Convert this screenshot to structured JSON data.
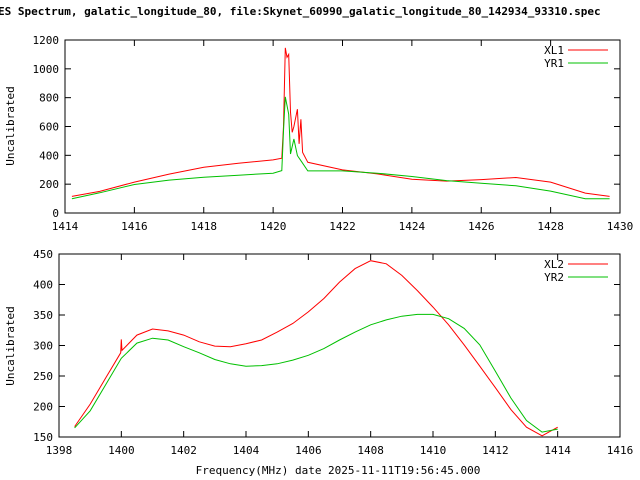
{
  "chart_data": [
    {
      "type": "line",
      "title": "ES Spectrum, galatic_longitude_80, file:Skynet_60990_galatic_longitude_80_142934_93310.spec",
      "xlabel": "",
      "ylabel": "Uncalibrated",
      "xlim": [
        1414,
        1430
      ],
      "ylim": [
        0,
        1200
      ],
      "xticks": [
        1414,
        1416,
        1418,
        1420,
        1422,
        1424,
        1426,
        1428,
        1430
      ],
      "yticks": [
        0,
        200,
        400,
        600,
        800,
        1000,
        1200
      ],
      "grid": false,
      "legend_position": "top-right",
      "series": [
        {
          "name": "XL1",
          "color": "#ff0000",
          "x": [
            1414.2,
            1415,
            1416,
            1417,
            1418,
            1419,
            1420,
            1420.25,
            1420.3,
            1420.35,
            1420.4,
            1420.45,
            1420.5,
            1420.55,
            1420.6,
            1420.7,
            1420.75,
            1420.8,
            1420.85,
            1421,
            1422,
            1423,
            1424,
            1425,
            1426,
            1427,
            1428,
            1429,
            1429.7
          ],
          "y": [
            115,
            150,
            214,
            270,
            317,
            345,
            368,
            380,
            600,
            1145,
            1080,
            1100,
            700,
            560,
            600,
            720,
            480,
            650,
            420,
            352,
            299,
            271,
            234,
            221,
            232,
            246,
            214,
            138,
            115
          ]
        },
        {
          "name": "YR1",
          "color": "#00c000",
          "x": [
            1414.2,
            1415,
            1416,
            1417,
            1418,
            1419,
            1420,
            1420.25,
            1420.3,
            1420.35,
            1420.45,
            1420.5,
            1420.6,
            1420.7,
            1420.8,
            1421,
            1422,
            1423,
            1424,
            1425,
            1426,
            1427,
            1428,
            1429,
            1429.7
          ],
          "y": [
            99,
            140,
            198,
            228,
            248,
            262,
            276,
            294,
            570,
            805,
            685,
            409,
            513,
            398,
            363,
            292,
            292,
            276,
            253,
            225,
            207,
            189,
            152,
            99,
            99
          ]
        }
      ]
    },
    {
      "type": "line",
      "title": "",
      "xlabel": "Frequency(MHz) date 2025-11-11T19:56:45.000",
      "ylabel": "Uncalibrated",
      "xlim": [
        1398,
        1416
      ],
      "ylim": [
        150,
        450
      ],
      "xticks": [
        1398,
        1400,
        1402,
        1404,
        1406,
        1408,
        1410,
        1412,
        1414,
        1416
      ],
      "yticks": [
        150,
        200,
        250,
        300,
        350,
        400,
        450
      ],
      "grid": false,
      "legend_position": "top-right",
      "series": [
        {
          "name": "XL2",
          "color": "#ff0000",
          "x": [
            1398.5,
            1399,
            1399.5,
            1399.98,
            1400,
            1400.02,
            1400.5,
            1401,
            1401.5,
            1402,
            1402.5,
            1403,
            1403.5,
            1404,
            1404.5,
            1405,
            1405.5,
            1406,
            1406.5,
            1407,
            1407.5,
            1408,
            1408.5,
            1409,
            1409.5,
            1410,
            1410.5,
            1411,
            1411.5,
            1412,
            1412.5,
            1413,
            1413.5,
            1414
          ],
          "y": [
            167,
            204,
            247,
            288,
            310,
            292,
            317,
            327,
            324,
            317,
            306,
            299,
            298,
            303,
            309,
            322,
            336,
            355,
            377,
            404,
            426,
            439,
            434,
            415,
            390,
            363,
            334,
            301,
            266,
            231,
            195,
            166,
            152,
            166
          ]
        },
        {
          "name": "YR2",
          "color": "#00c000",
          "x": [
            1398.5,
            1399,
            1399.5,
            1400,
            1400.5,
            1401,
            1401.5,
            1402,
            1402.5,
            1403,
            1403.5,
            1404,
            1404.5,
            1405,
            1405.5,
            1406,
            1406.5,
            1407,
            1407.5,
            1408,
            1408.5,
            1409,
            1409.5,
            1410,
            1410.5,
            1411,
            1411.5,
            1412,
            1412.5,
            1413,
            1413.5,
            1414
          ],
          "y": [
            165,
            193,
            236,
            279,
            304,
            312,
            309,
            298,
            288,
            277,
            270,
            266,
            267,
            270,
            276,
            284,
            295,
            309,
            322,
            334,
            342,
            348,
            351,
            351,
            344,
            328,
            301,
            258,
            214,
            177,
            158,
            163
          ]
        }
      ]
    }
  ]
}
